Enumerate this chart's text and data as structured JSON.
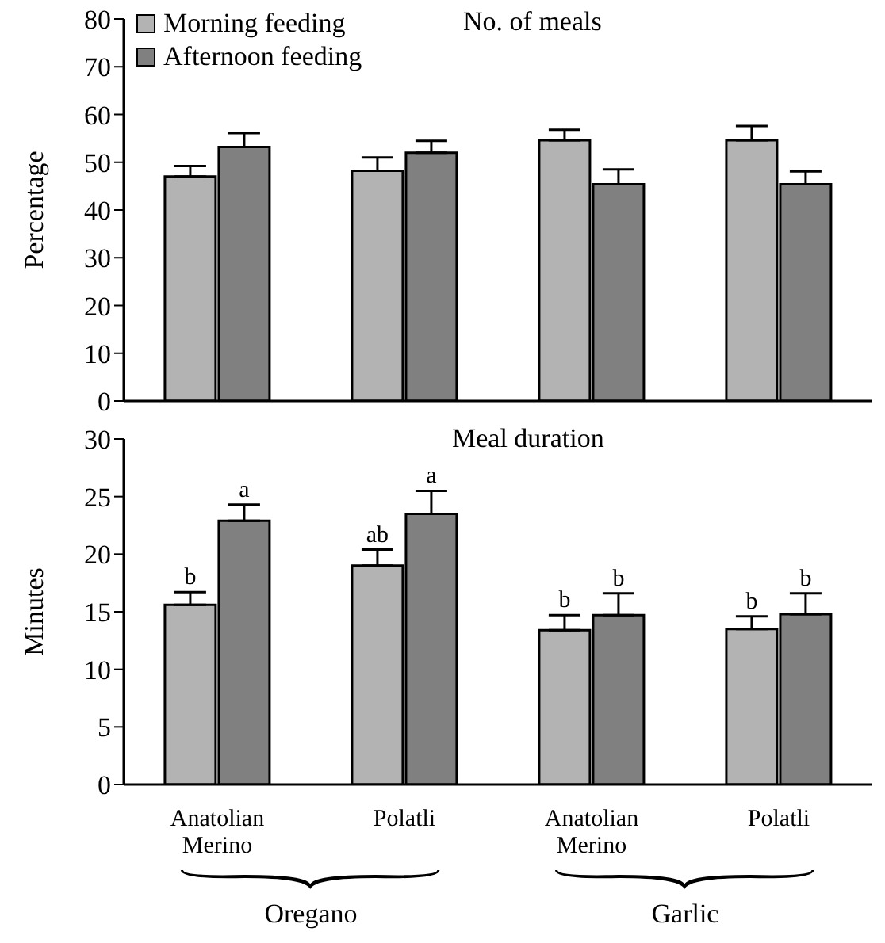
{
  "chart_data": [
    {
      "type": "bar",
      "title": "No. of meals",
      "ylabel": "Percentage",
      "categories": [
        null,
        null,
        null,
        null
      ],
      "ylim": [
        0,
        80
      ],
      "yticks": [
        0,
        10,
        20,
        30,
        40,
        50,
        60,
        70,
        80
      ],
      "tick_labels": "y",
      "legend": "top left",
      "grid": false,
      "series": [
        {
          "name": "Morning feeding",
          "color": "#b3b3b3",
          "values": [
            47,
            48.2,
            54.6,
            54.6
          ],
          "errors": [
            [
              47,
              49.2
            ],
            [
              48.2,
              51
            ],
            [
              54.6,
              56.8
            ],
            [
              54.6,
              57.6
            ]
          ]
        },
        {
          "name": "Afternoon feeding",
          "color": "#808080",
          "values": [
            53.2,
            52,
            45.4,
            45.4
          ],
          "errors": [
            [
              53.2,
              56.1
            ],
            [
              52,
              54.5
            ],
            [
              45.4,
              48.5
            ],
            [
              45.4,
              48.1
            ]
          ]
        }
      ]
    },
    {
      "type": "bar",
      "title": "Meal duration",
      "ylabel": "Minutes",
      "categories": [
        "Anatolian Merino",
        "Polatli",
        "Anatolian Merino",
        "Polatli"
      ],
      "ylim": [
        0,
        30
      ],
      "yticks": [
        0,
        5,
        10,
        15,
        20,
        25,
        30
      ],
      "legend": false,
      "grid": false,
      "annotations": [
        "Oregano",
        "Garlic"
      ],
      "series": [
        {
          "color": "#b3b3b3",
          "values": [
            15.6,
            19,
            13.4,
            13.5
          ],
          "errors": [
            [
              15.6,
              16.7
            ],
            [
              19,
              20.4
            ],
            [
              13.4,
              14.7
            ],
            [
              13.5,
              14.6
            ]
          ],
          "value_labels": [
            "b",
            "ab",
            "b",
            "b"
          ]
        },
        {
          "color": "#808080",
          "values": [
            22.9,
            23.5,
            14.7,
            14.8
          ],
          "errors": [
            [
              22.9,
              24.3
            ],
            [
              23.5,
              25.5
            ],
            [
              14.7,
              16.6
            ],
            [
              14.8,
              16.6
            ]
          ],
          "value_labels": [
            "a",
            "a",
            "b",
            "b"
          ]
        }
      ]
    }
  ]
}
